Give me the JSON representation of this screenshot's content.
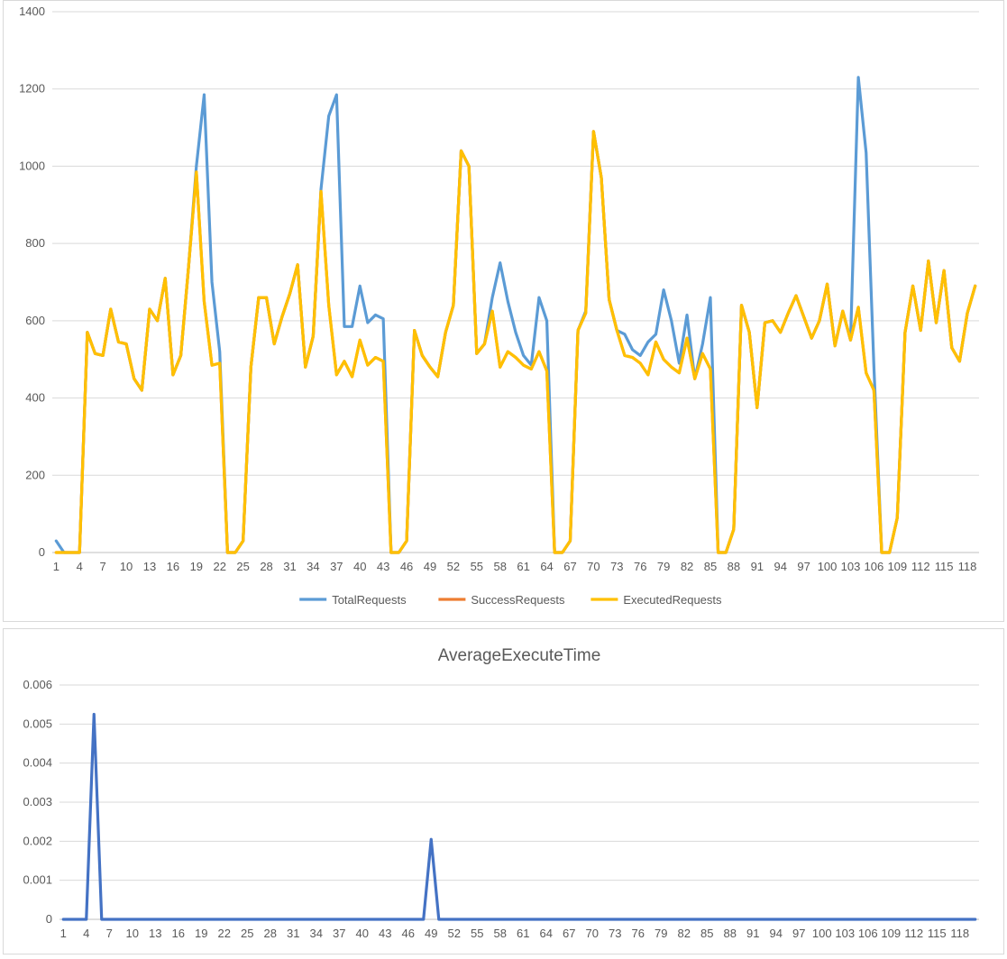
{
  "chart_data": [
    {
      "type": "line",
      "title": "",
      "xlabel": "",
      "ylabel": "",
      "ylim": [
        0,
        1400
      ],
      "yticks": [
        0,
        200,
        400,
        600,
        800,
        1000,
        1200,
        1400
      ],
      "xtick_labels": [
        1,
        4,
        7,
        10,
        13,
        16,
        19,
        22,
        25,
        28,
        31,
        34,
        37,
        40,
        43,
        46,
        49,
        52,
        55,
        58,
        61,
        64,
        67,
        70,
        73,
        76,
        79,
        82,
        85,
        88,
        91,
        94,
        97,
        100,
        103,
        106,
        109,
        112,
        115,
        118
      ],
      "grid": true,
      "legend_position": "bottom",
      "x_start": 1,
      "series": [
        {
          "name": "TotalRequests",
          "color": "#5B9BD5",
          "values": [
            30,
            0,
            0,
            0,
            570,
            515,
            510,
            630,
            545,
            540,
            450,
            420,
            630,
            600,
            710,
            460,
            510,
            740,
            1000,
            1185,
            700,
            520,
            0,
            0,
            30,
            480,
            660,
            660,
            540,
            610,
            670,
            745,
            480,
            560,
            940,
            1130,
            1185,
            585,
            585,
            690,
            595,
            615,
            605,
            0,
            0,
            30,
            575,
            510,
            480,
            455,
            570,
            640,
            1040,
            1000,
            515,
            540,
            660,
            750,
            650,
            570,
            510,
            485,
            660,
            600,
            0,
            0,
            30,
            575,
            625,
            1090,
            970,
            655,
            575,
            565,
            525,
            510,
            545,
            565,
            680,
            600,
            490,
            615,
            450,
            540,
            660,
            0,
            0,
            60,
            640,
            570,
            375,
            595,
            600,
            570,
            620,
            665,
            610,
            555,
            600,
            695,
            535,
            625,
            550,
            1230,
            1035,
            480,
            0,
            0,
            90,
            570,
            690,
            575,
            755,
            595,
            730,
            530,
            495,
            620,
            690
          ]
        },
        {
          "name": "SuccessRequests",
          "color": "#ED7D31",
          "values": [
            0,
            0,
            0,
            0,
            570,
            515,
            510,
            630,
            545,
            540,
            450,
            420,
            630,
            600,
            710,
            460,
            510,
            740,
            985,
            650,
            485,
            490,
            0,
            0,
            30,
            480,
            660,
            660,
            540,
            610,
            670,
            745,
            480,
            560,
            935,
            640,
            460,
            495,
            455,
            550,
            485,
            505,
            495,
            0,
            0,
            30,
            575,
            510,
            480,
            455,
            570,
            640,
            1040,
            1000,
            515,
            540,
            625,
            480,
            520,
            505,
            485,
            475,
            520,
            470,
            0,
            0,
            30,
            575,
            620,
            1090,
            970,
            655,
            575,
            510,
            505,
            490,
            460,
            545,
            500,
            480,
            465,
            555,
            450,
            515,
            475,
            0,
            0,
            60,
            640,
            570,
            375,
            595,
            600,
            570,
            620,
            665,
            610,
            555,
            600,
            695,
            535,
            625,
            550,
            635,
            465,
            420,
            0,
            0,
            90,
            570,
            690,
            575,
            755,
            595,
            730,
            530,
            495,
            620,
            690
          ]
        },
        {
          "name": "ExecutedRequests",
          "color": "#FFC000",
          "values": [
            0,
            0,
            0,
            0,
            570,
            515,
            510,
            630,
            545,
            540,
            450,
            420,
            630,
            600,
            710,
            460,
            510,
            740,
            985,
            650,
            485,
            490,
            0,
            0,
            30,
            480,
            660,
            660,
            540,
            610,
            670,
            745,
            480,
            560,
            935,
            640,
            460,
            495,
            455,
            550,
            485,
            505,
            495,
            0,
            0,
            30,
            575,
            510,
            480,
            455,
            570,
            640,
            1040,
            1000,
            515,
            540,
            625,
            480,
            520,
            505,
            485,
            475,
            520,
            470,
            0,
            0,
            30,
            575,
            620,
            1090,
            970,
            655,
            575,
            510,
            505,
            490,
            460,
            545,
            500,
            480,
            465,
            555,
            450,
            515,
            475,
            0,
            0,
            60,
            640,
            570,
            375,
            595,
            600,
            570,
            620,
            665,
            610,
            555,
            600,
            695,
            535,
            625,
            550,
            635,
            465,
            420,
            0,
            0,
            90,
            570,
            690,
            575,
            755,
            595,
            730,
            530,
            495,
            620,
            690
          ]
        }
      ]
    },
    {
      "type": "line",
      "title": "AverageExecuteTime",
      "xlabel": "",
      "ylabel": "",
      "ylim": [
        0,
        0.006
      ],
      "yticks": [
        0,
        0.001,
        0.002,
        0.003,
        0.004,
        0.005,
        0.006
      ],
      "xtick_labels": [
        1,
        4,
        7,
        10,
        13,
        16,
        19,
        22,
        25,
        28,
        31,
        34,
        37,
        40,
        43,
        46,
        49,
        52,
        55,
        58,
        61,
        64,
        67,
        70,
        73,
        76,
        79,
        82,
        85,
        88,
        91,
        94,
        97,
        100,
        103,
        106,
        109,
        112,
        115,
        118
      ],
      "grid": true,
      "x_start": 1,
      "series": [
        {
          "color": "#4472C4",
          "values": [
            0,
            0,
            0,
            0,
            0.00525,
            0,
            0,
            0,
            0,
            0,
            0,
            0,
            0,
            0,
            0,
            0,
            0,
            0,
            0,
            0,
            0,
            0,
            0,
            0,
            0,
            0,
            0,
            0,
            0,
            0,
            0,
            0,
            0,
            0,
            0,
            0,
            0,
            0,
            0,
            0,
            0,
            0,
            0,
            0,
            0,
            0,
            0,
            0,
            0.00205,
            0,
            0,
            0,
            0,
            0,
            0,
            0,
            0,
            0,
            0,
            0,
            0,
            0,
            0,
            0,
            0,
            0,
            0,
            0,
            0,
            0,
            0,
            0,
            0,
            0,
            0,
            0,
            0,
            0,
            0,
            0,
            0,
            0,
            0,
            0,
            0,
            0,
            0,
            0,
            0,
            0,
            0,
            0,
            0,
            0,
            0,
            0,
            0,
            0,
            0,
            0,
            0,
            0,
            0,
            0,
            0,
            0,
            0,
            0,
            0,
            0,
            0,
            0,
            0,
            0,
            0,
            0,
            0,
            0,
            0,
            0
          ]
        }
      ]
    }
  ]
}
